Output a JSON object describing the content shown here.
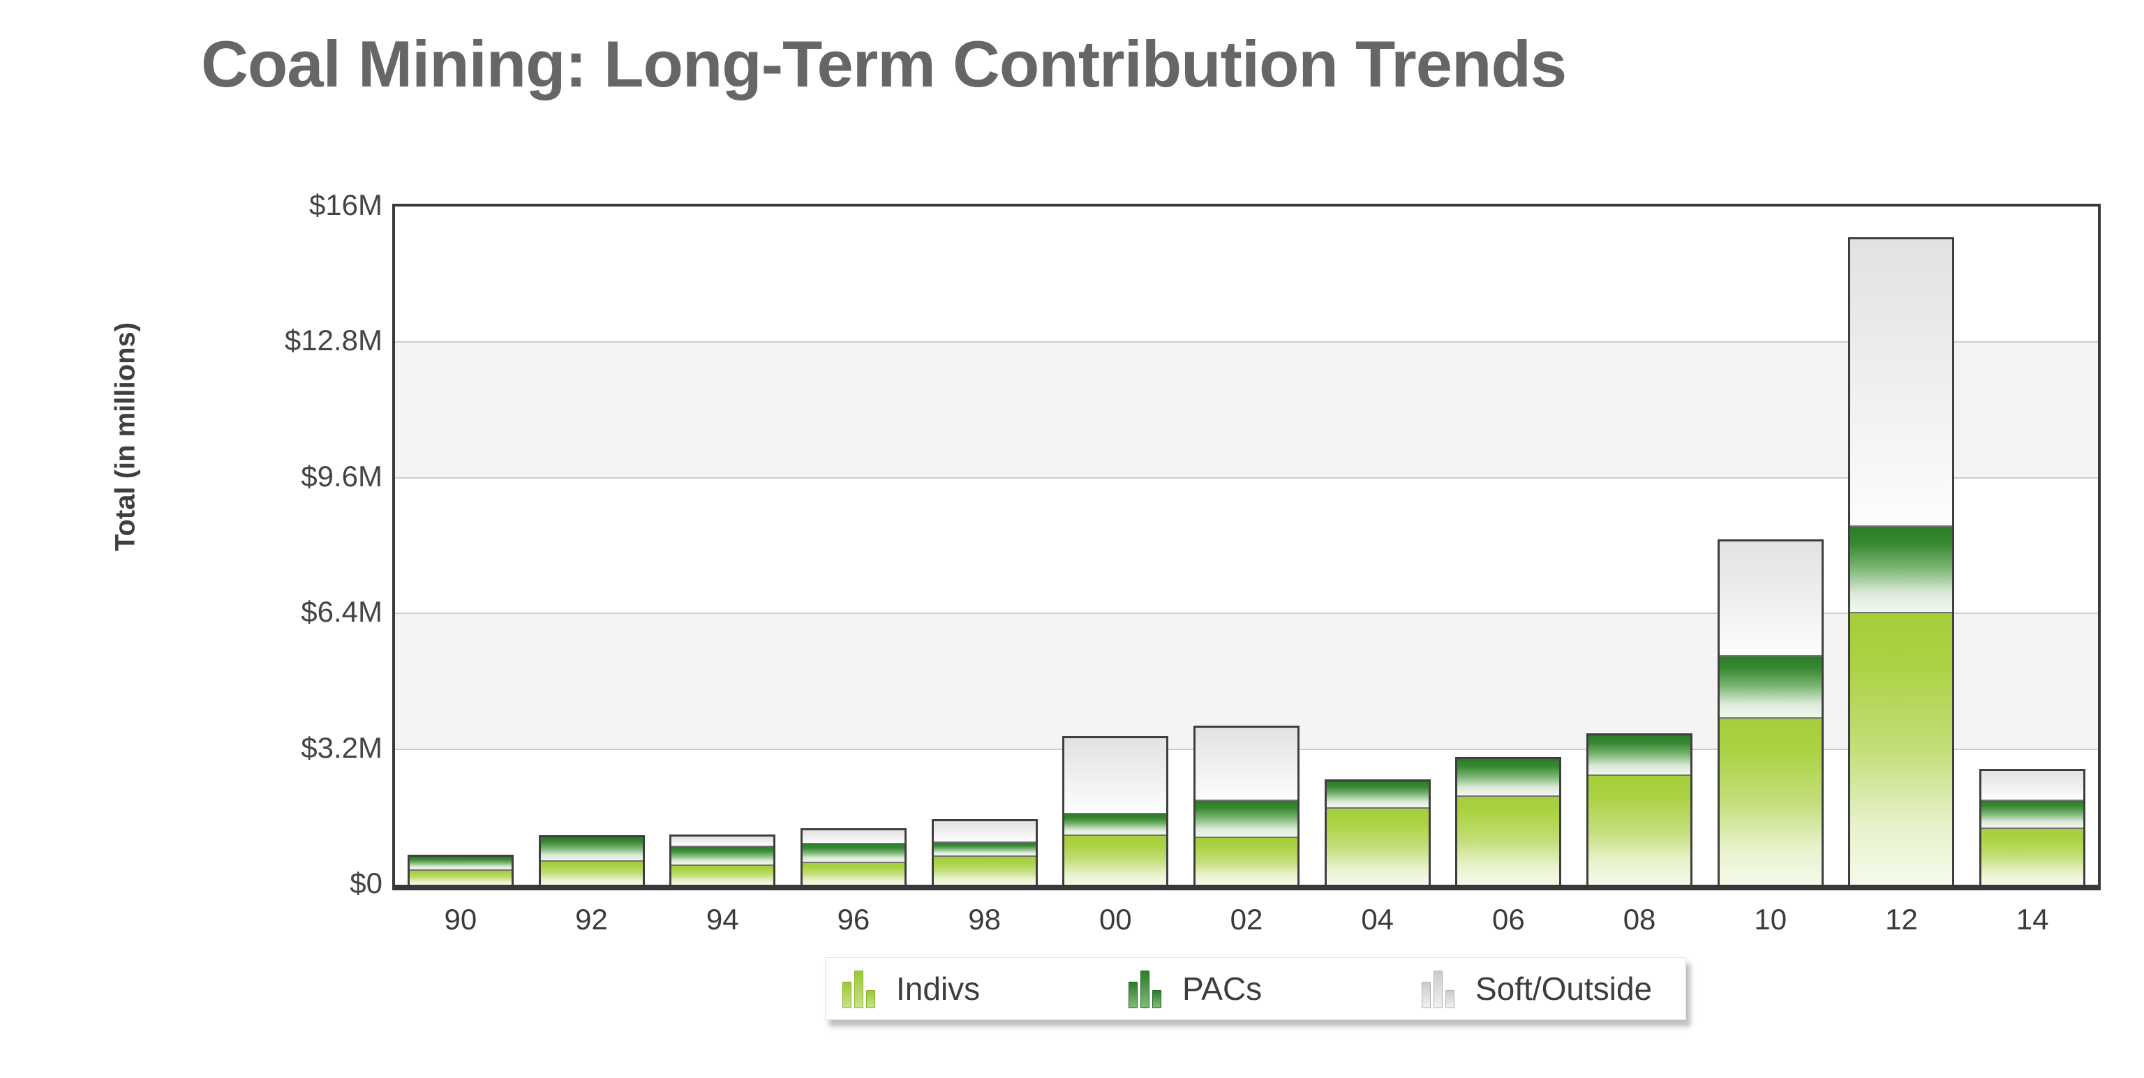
{
  "title": "Coal Mining: Long-Term Contribution Trends",
  "chart_data": {
    "type": "bar",
    "stacked": true,
    "title": "Coal Mining: Long-Term Contribution Trends",
    "xlabel": "",
    "ylabel": "Total (in millions)",
    "units": "millions USD",
    "ylim": [
      0,
      16
    ],
    "y_ticks": [
      0,
      3.2,
      6.4,
      9.6,
      12.8,
      16
    ],
    "y_tick_labels": [
      "$0",
      "$3.2M",
      "$6.4M",
      "$9.6M",
      "$12.8M",
      "$16M"
    ],
    "categories": [
      "90",
      "92",
      "94",
      "96",
      "98",
      "00",
      "02",
      "04",
      "06",
      "08",
      "10",
      "12",
      "14"
    ],
    "series": [
      {
        "name": "Indivs",
        "key": "indivs",
        "color": "#a5ce39",
        "values": [
          0.37,
          0.57,
          0.47,
          0.54,
          0.69,
          1.19,
          1.14,
          1.82,
          2.1,
          2.6,
          3.95,
          6.43,
          1.35
        ]
      },
      {
        "name": "PACs",
        "key": "pacs",
        "color": "#2a7c27",
        "values": [
          0.29,
          0.55,
          0.46,
          0.44,
          0.33,
          0.51,
          0.87,
          0.62,
          0.87,
          0.93,
          1.47,
          2.04,
          0.66
        ]
      },
      {
        "name": "Soft/Outside",
        "key": "soft",
        "color": "#e2e2e2",
        "values": [
          0.0,
          0.0,
          0.2,
          0.31,
          0.47,
          1.76,
          1.7,
          0.0,
          0.0,
          0.0,
          2.68,
          6.76,
          0.67
        ]
      }
    ],
    "grid": "horizontal",
    "band_pairs": [
      [
        12.8,
        9.6
      ],
      [
        6.4,
        3.2
      ]
    ],
    "band_color": "#f4f4f4",
    "grid_color": "#cccccc",
    "legend_position": "bottom"
  },
  "legend": {
    "items": [
      "Indivs",
      "PACs",
      "Soft/Outside"
    ]
  }
}
